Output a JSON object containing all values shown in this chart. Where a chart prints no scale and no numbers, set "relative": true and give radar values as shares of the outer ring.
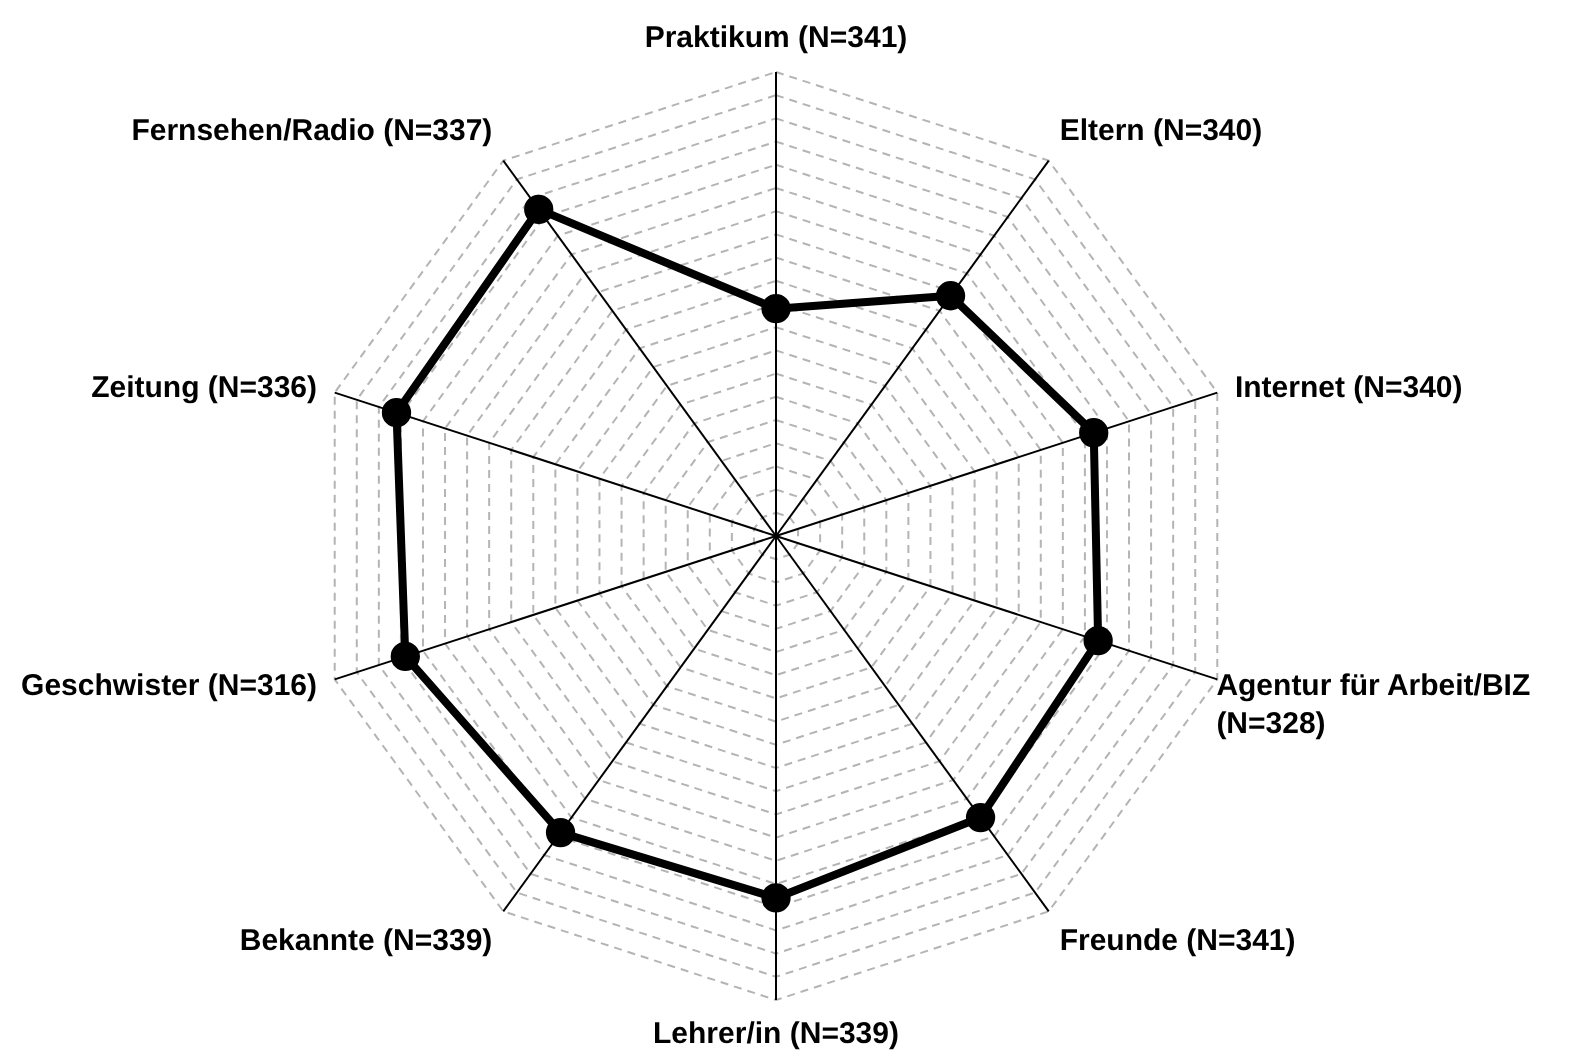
{
  "chart_data": {
    "type": "radar",
    "relative": true,
    "grid": true,
    "marker": "circle",
    "line_style": "solid",
    "categories": [
      "Praktikum (N=341)",
      "Eltern (N=340)",
      "Internet (N=340)",
      "Agentur für Arbeit/BIZ (N=328)",
      "Freunde (N=341)",
      "Lehrer/in (N=339)",
      "Bekannte (N=339)",
      "Geschwister (N=316)",
      "Zeitung (N=336)",
      "Fernsehen/Radio (N=337)"
    ],
    "series": [
      {
        "color": "#000000",
        "values": [
          0.49,
          0.64,
          0.72,
          0.73,
          0.75,
          0.78,
          0.79,
          0.84,
          0.86,
          0.87
        ]
      }
    ]
  }
}
